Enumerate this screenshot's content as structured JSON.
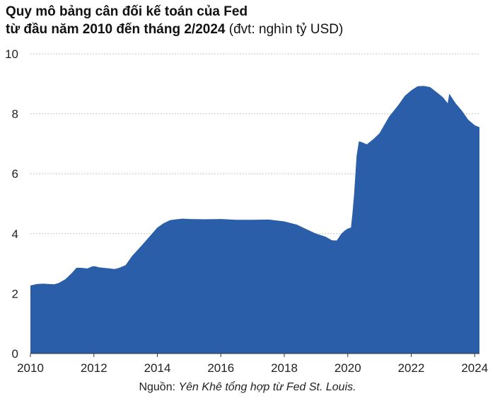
{
  "chart_data": {
    "type": "area",
    "title_line1": "Quy mô bảng cân đối kế toán của Fed",
    "title_line2": "từ đầu năm 2010 đến tháng 2/2024",
    "unit": "(đvt: nghìn tỷ USD)",
    "xlabel": "",
    "ylabel": "",
    "x_ticks": [
      "2010",
      "2012",
      "2014",
      "2016",
      "2018",
      "2020",
      "2022",
      "2024"
    ],
    "y_ticks": [
      "0",
      "2",
      "4",
      "6",
      "8",
      "10"
    ],
    "xlim": [
      2010,
      2024.15
    ],
    "ylim": [
      0,
      10
    ],
    "grid": true,
    "color": "#2a5ea8",
    "x": [
      2010,
      2010.2,
      2010.4,
      2010.6,
      2010.75,
      2010.9,
      2011.1,
      2011.3,
      2011.45,
      2011.6,
      2011.8,
      2011.95,
      2012.05,
      2012.15,
      2012.3,
      2012.5,
      2012.65,
      2012.8,
      2013.0,
      2013.2,
      2013.5,
      2013.8,
      2014.0,
      2014.2,
      2014.4,
      2014.6,
      2014.8,
      2015.0,
      2015.5,
      2016.0,
      2016.5,
      2017.0,
      2017.5,
      2018.0,
      2018.4,
      2018.7,
      2019.0,
      2019.3,
      2019.5,
      2019.65,
      2019.8,
      2019.9,
      2020.0,
      2020.1,
      2020.15,
      2020.2,
      2020.28,
      2020.35,
      2020.45,
      2020.6,
      2020.8,
      2021.0,
      2021.3,
      2021.6,
      2021.8,
      2022.0,
      2022.2,
      2022.4,
      2022.6,
      2022.8,
      2023.0,
      2023.15,
      2023.2,
      2023.4,
      2023.6,
      2023.8,
      2024.0,
      2024.15
    ],
    "values": [
      2.27,
      2.32,
      2.33,
      2.32,
      2.31,
      2.36,
      2.48,
      2.68,
      2.86,
      2.86,
      2.84,
      2.91,
      2.91,
      2.88,
      2.86,
      2.84,
      2.82,
      2.86,
      2.95,
      3.25,
      3.6,
      3.96,
      4.2,
      4.35,
      4.45,
      4.48,
      4.5,
      4.49,
      4.48,
      4.49,
      4.46,
      4.46,
      4.47,
      4.41,
      4.3,
      4.15,
      4.0,
      3.9,
      3.78,
      3.77,
      4.0,
      4.1,
      4.17,
      4.2,
      4.7,
      5.3,
      6.6,
      7.08,
      7.05,
      6.98,
      7.15,
      7.35,
      7.9,
      8.3,
      8.6,
      8.78,
      8.92,
      8.93,
      8.89,
      8.72,
      8.55,
      8.35,
      8.67,
      8.35,
      8.1,
      7.8,
      7.62,
      7.55
    ]
  },
  "source": {
    "prefix": "Nguồn: ",
    "text": "Yên Khê tổng hợp từ Fed St. Louis."
  }
}
